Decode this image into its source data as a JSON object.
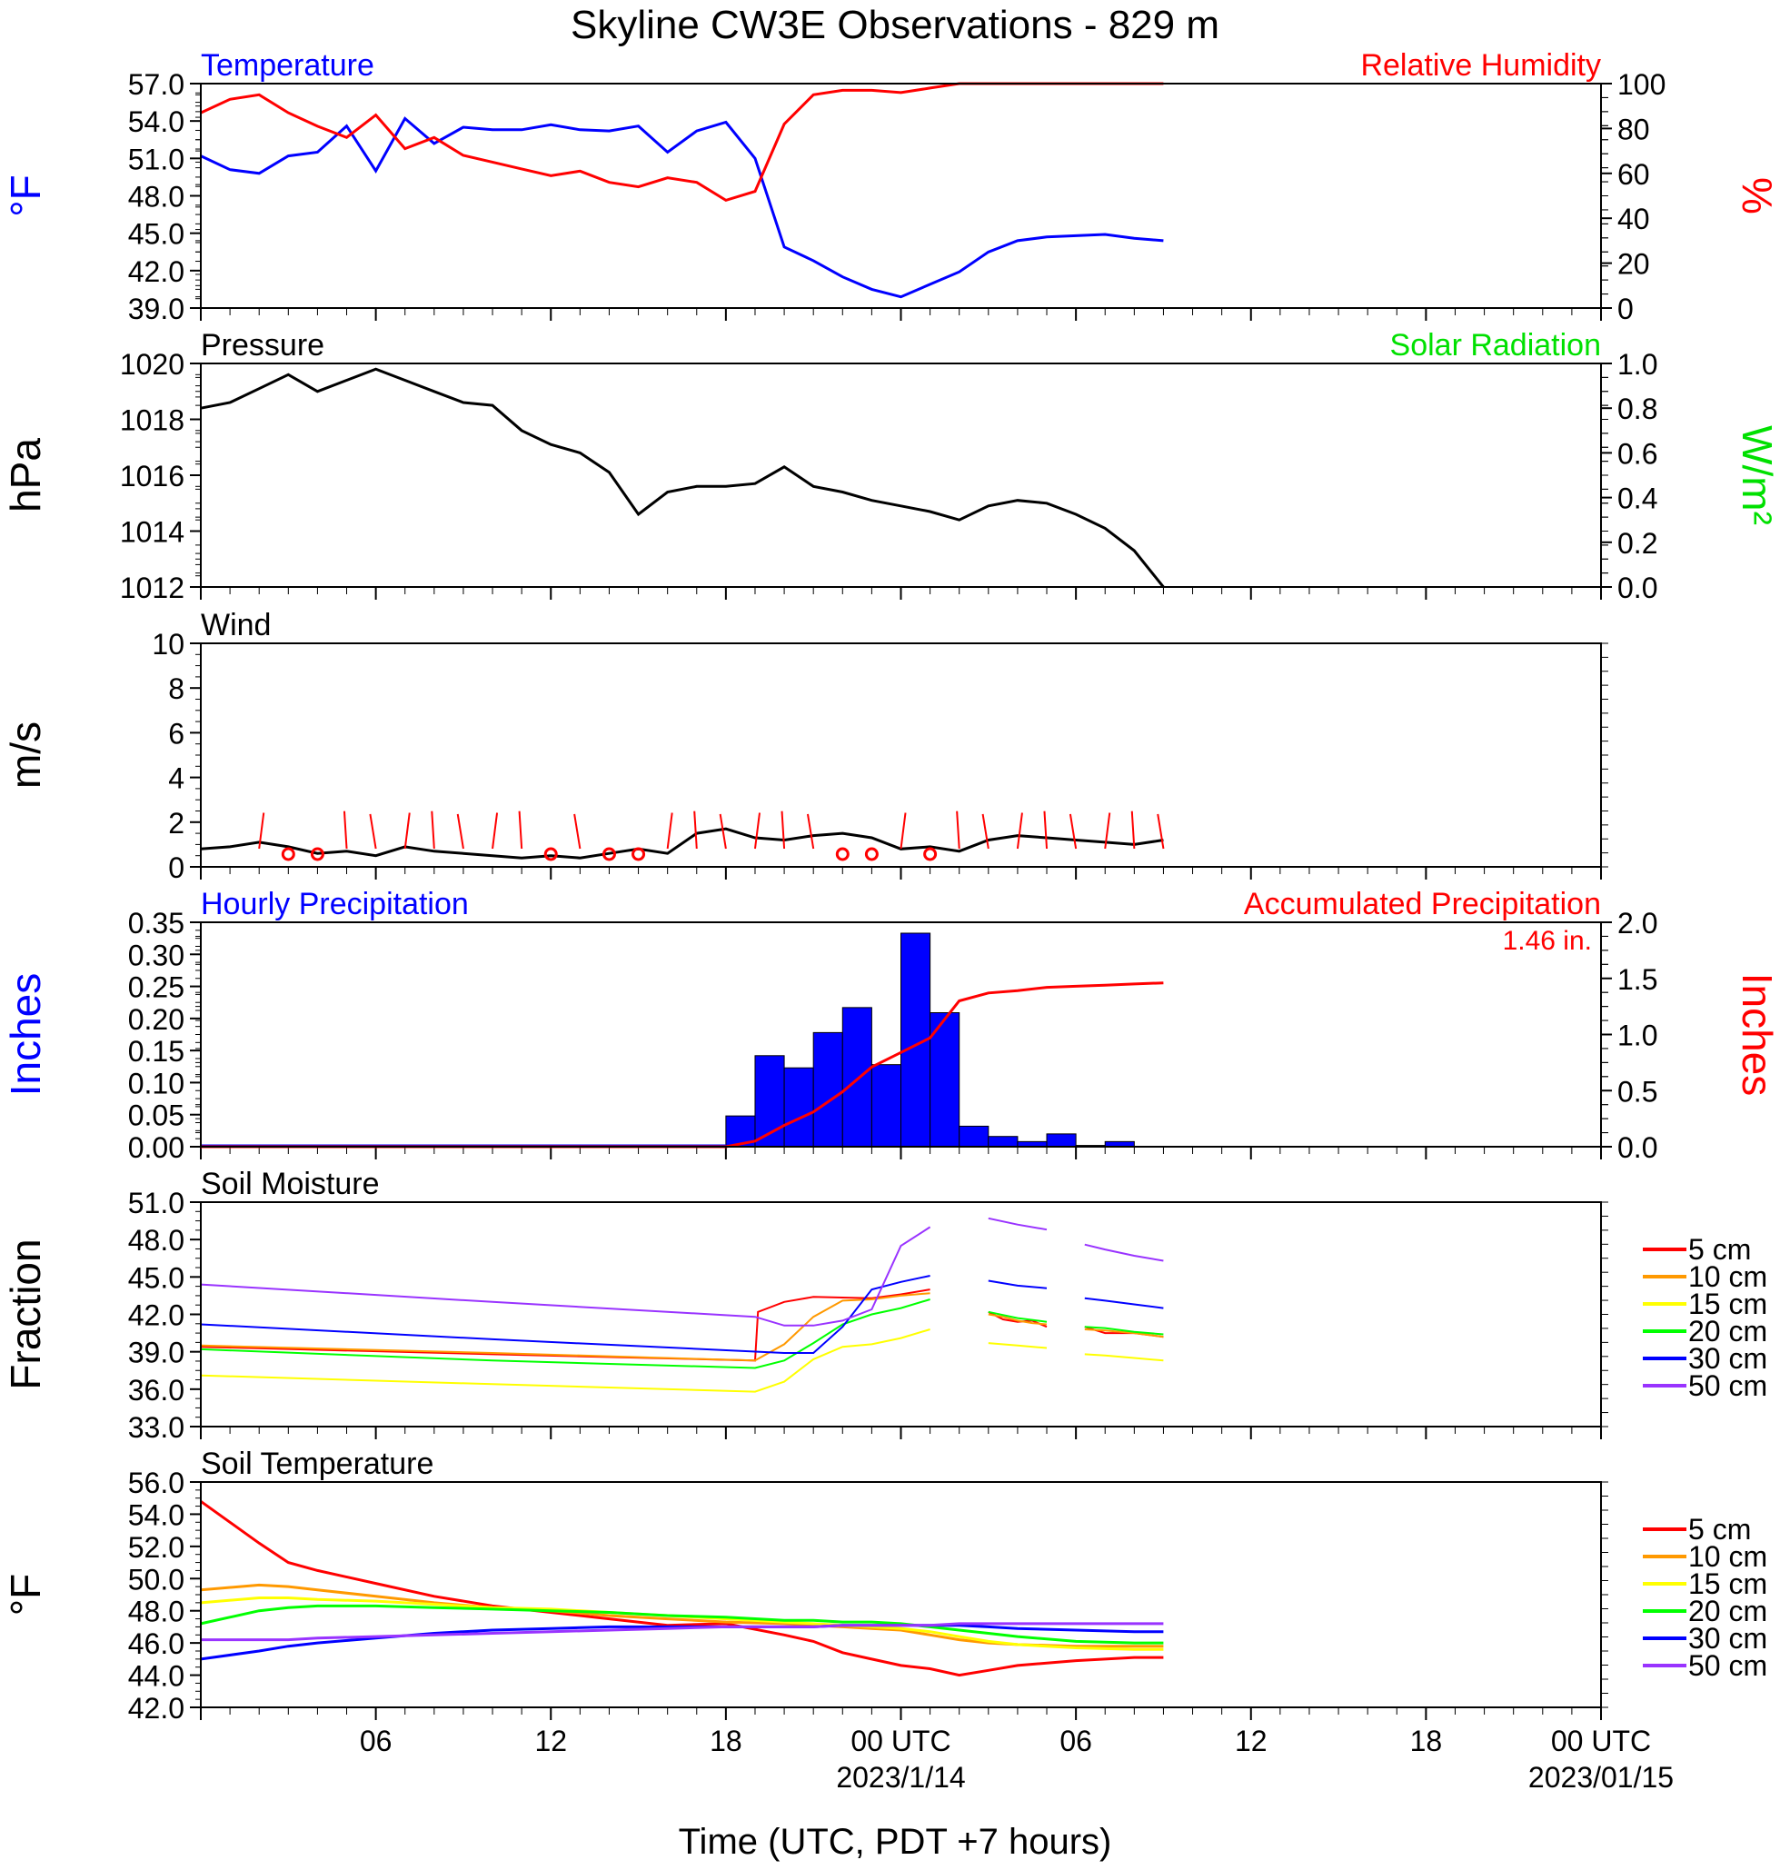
{
  "page": {
    "title": "Skyline CW3E Observations - 829 m",
    "xlabel": "Time (UTC, PDT +7 hours)",
    "x_ticks": [
      "",
      "06",
      "12",
      "18",
      "00 UTC",
      "06",
      "12",
      "18",
      "00 UTC"
    ],
    "date_labels": [
      "2023/1/14",
      "2023/01/15"
    ]
  },
  "chart_data": [
    {
      "panel": "temperature_rh",
      "type": "line",
      "title_left": "Temperature",
      "title_right": "Relative Humidity",
      "ylabel_left": "°F",
      "ylabel_right": "%",
      "ylim_left": [
        39,
        57
      ],
      "yticks_left": [
        "57.0",
        "54.0",
        "51.0",
        "48.0",
        "45.0",
        "42.0",
        "39.0"
      ],
      "ylim_right": [
        0,
        100
      ],
      "yticks_right": [
        "100",
        "80",
        "60",
        "40",
        "20",
        "0"
      ],
      "x_hours": [
        0,
        1,
        2,
        3,
        4,
        5,
        6,
        7,
        8,
        9,
        10,
        11,
        12,
        13,
        14,
        15,
        16,
        17,
        18,
        19,
        20,
        21,
        22,
        23,
        24,
        25,
        26,
        27,
        28,
        29,
        30,
        31,
        32,
        33
      ],
      "series": [
        {
          "name": "Temperature",
          "color": "#0000ff",
          "axis": "left",
          "values": [
            51.2,
            50.1,
            49.8,
            51.2,
            51.5,
            53.6,
            50.0,
            54.2,
            52.2,
            53.5,
            53.3,
            53.3,
            53.7,
            53.3,
            53.2,
            53.6,
            51.5,
            53.2,
            53.9,
            51.0,
            43.9,
            42.8,
            41.5,
            40.5,
            39.9,
            40.9,
            41.9,
            43.5,
            44.4,
            44.7,
            44.8,
            44.9,
            44.6,
            44.4
          ]
        },
        {
          "name": "Relative Humidity",
          "color": "#ff0000",
          "axis": "right",
          "values": [
            87,
            93,
            95,
            87,
            81,
            76,
            86,
            71,
            76,
            68,
            65,
            62,
            59,
            61,
            56,
            54,
            58,
            56,
            48,
            52,
            82,
            95,
            97,
            97,
            96,
            98,
            100,
            100,
            100,
            100,
            100,
            100,
            100,
            100
          ]
        }
      ]
    },
    {
      "panel": "pressure",
      "type": "line",
      "title_left": "Pressure",
      "title_right": "Solar Radiation",
      "ylabel_left": "hPa",
      "ylabel_right": "W/m²",
      "ylim_left": [
        1012,
        1020
      ],
      "yticks_left": [
        "1020",
        "1018",
        "1016",
        "1014",
        "1012"
      ],
      "ylim_right": [
        0,
        1
      ],
      "yticks_right": [
        "1.0",
        "0.8",
        "0.6",
        "0.4",
        "0.2",
        "0.0"
      ],
      "x_hours": [
        0,
        1,
        2,
        3,
        4,
        5,
        6,
        7,
        8,
        9,
        10,
        11,
        12,
        13,
        14,
        15,
        16,
        17,
        18,
        19,
        20,
        21,
        22,
        23,
        24,
        25,
        26,
        27,
        28,
        29,
        30,
        31,
        32,
        33
      ],
      "series": [
        {
          "name": "Pressure",
          "color": "#000000",
          "axis": "left",
          "values": [
            1018.4,
            1018.6,
            1019.1,
            1019.6,
            1019.0,
            1019.4,
            1019.8,
            1019.4,
            1019.0,
            1018.6,
            1018.5,
            1017.6,
            1017.1,
            1016.8,
            1016.1,
            1014.6,
            1015.4,
            1015.6,
            1015.6,
            1015.7,
            1016.3,
            1015.6,
            1015.4,
            1015.1,
            1014.9,
            1014.7,
            1014.4,
            1014.9,
            1015.1,
            1015.0,
            1014.6,
            1014.1,
            1013.3,
            1012.0
          ]
        }
      ]
    },
    {
      "panel": "wind",
      "type": "line",
      "title_left": "Wind",
      "ylabel_left": "m/s",
      "ylim_left": [
        0,
        10
      ],
      "yticks_left": [
        "10",
        "8",
        "6",
        "4",
        "2",
        "0"
      ],
      "x_hours": [
        0,
        1,
        2,
        3,
        4,
        5,
        6,
        7,
        8,
        9,
        10,
        11,
        12,
        13,
        14,
        15,
        16,
        17,
        18,
        19,
        20,
        21,
        22,
        23,
        24,
        25,
        26,
        27,
        28,
        29,
        30,
        31,
        32,
        33
      ],
      "series": [
        {
          "name": "Wind Speed",
          "color": "#000000",
          "axis": "left",
          "values": [
            0.8,
            0.9,
            1.1,
            0.9,
            0.6,
            0.7,
            0.5,
            0.9,
            0.7,
            0.6,
            0.5,
            0.4,
            0.5,
            0.4,
            0.6,
            0.8,
            0.6,
            1.5,
            1.7,
            1.3,
            1.2,
            1.4,
            1.5,
            1.3,
            0.8,
            0.9,
            0.7,
            1.2,
            1.4,
            1.3,
            1.2,
            1.1,
            1.0,
            1.2
          ]
        },
        {
          "name": "Wind Barbs",
          "color": "#ff0000",
          "axis": "left",
          "calm_hours": [
            3,
            4,
            12,
            14,
            15,
            22,
            23,
            25
          ],
          "barb_hours": [
            2,
            5,
            6,
            7,
            8,
            9,
            10,
            11,
            13,
            16,
            17,
            18,
            19,
            20,
            21,
            24,
            26,
            27,
            28,
            29,
            30,
            31,
            32,
            33
          ]
        }
      ]
    },
    {
      "panel": "precipitation",
      "type": "bar",
      "title_left": "Hourly Precipitation",
      "title_right": "Accumulated Precipitation",
      "annotation": "1.46 in.",
      "ylabel_left": "Inches",
      "ylabel_right": "Inches",
      "ylim_left": [
        0,
        0.35
      ],
      "yticks_left": [
        "0.35",
        "0.30",
        "0.25",
        "0.20",
        "0.15",
        "0.10",
        "0.05",
        "0.00"
      ],
      "ylim_right": [
        0,
        2.0
      ],
      "yticks_right": [
        "2.0",
        "1.5",
        "1.0",
        "0.5",
        "0.0"
      ],
      "hourly": {
        "start_hour": 18,
        "color": "#0000ff",
        "values": [
          0.048,
          0.142,
          0.123,
          0.178,
          0.217,
          0.128,
          0.333,
          0.209,
          0.032,
          0.016,
          0.008,
          0.02,
          0.002,
          0.008
        ]
      },
      "accumulated": {
        "name": "Accumulated Precipitation",
        "color": "#ff0000",
        "x_hours": [
          0,
          18,
          19,
          20,
          21,
          22,
          23,
          24,
          25,
          26,
          27,
          28,
          29,
          30,
          31,
          32,
          33
        ],
        "values": [
          0,
          0,
          0.05,
          0.19,
          0.31,
          0.49,
          0.71,
          0.84,
          0.97,
          1.3,
          1.37,
          1.39,
          1.42,
          1.43,
          1.44,
          1.45,
          1.46
        ]
      }
    },
    {
      "panel": "soil_moisture",
      "type": "line",
      "title_left": "Soil Moisture",
      "ylabel_left": "Fraction",
      "ylim_left": [
        33,
        51
      ],
      "yticks_left": [
        "51.0",
        "48.0",
        "45.0",
        "42.0",
        "39.0",
        "36.0",
        "33.0"
      ],
      "legend": [
        "5 cm",
        "10 cm",
        "15 cm",
        "20 cm",
        "30 cm",
        "50 cm"
      ],
      "legend_colors": [
        "#ff0000",
        "#ff9900",
        "#ffff00",
        "#00ff00",
        "#0000ff",
        "#9933ff"
      ],
      "series": [
        {
          "name": "5 cm",
          "color": "#ff0000",
          "segments": [
            {
              "x": [
                0,
                10,
                19,
                19.1,
                20,
                21,
                23,
                24,
                25
              ],
              "values": [
                39.4,
                38.8,
                38.3,
                42.2,
                43.0,
                43.4,
                43.3,
                43.6,
                44.0
              ]
            },
            {
              "x": [
                27,
                27.5,
                28,
                28.5,
                29
              ],
              "values": [
                42.2,
                41.6,
                41.4,
                41.5,
                41.0
              ]
            },
            {
              "x": [
                30.3,
                31,
                32,
                33
              ],
              "values": [
                41.0,
                40.5,
                40.5,
                40.2
              ]
            }
          ]
        },
        {
          "name": "10 cm",
          "color": "#ff9900",
          "segments": [
            {
              "x": [
                0,
                10,
                19,
                20,
                21,
                22,
                23,
                24,
                25
              ],
              "values": [
                39.5,
                38.9,
                38.3,
                39.6,
                41.8,
                43.1,
                43.2,
                43.5,
                43.7
              ]
            },
            {
              "x": [
                27,
                27.5,
                28,
                28.5,
                29
              ],
              "values": [
                42.0,
                41.8,
                41.5,
                41.3,
                41.2
              ]
            },
            {
              "x": [
                30.3,
                31,
                32,
                33
              ],
              "values": [
                40.8,
                40.7,
                40.5,
                40.2
              ]
            }
          ]
        },
        {
          "name": "15 cm",
          "color": "#ffff00",
          "segments": [
            {
              "x": [
                0,
                10,
                19,
                20,
                21,
                22,
                23,
                24,
                25
              ],
              "values": [
                37.1,
                36.4,
                35.8,
                36.6,
                38.4,
                39.4,
                39.6,
                40.1,
                40.8
              ]
            },
            {
              "x": [
                27,
                28,
                29
              ],
              "values": [
                39.7,
                39.5,
                39.3
              ]
            },
            {
              "x": [
                30.3,
                31,
                32,
                33
              ],
              "values": [
                38.8,
                38.7,
                38.5,
                38.3
              ]
            }
          ]
        },
        {
          "name": "20 cm",
          "color": "#00ff00",
          "segments": [
            {
              "x": [
                0,
                10,
                19,
                20,
                21,
                22,
                23,
                24,
                25
              ],
              "values": [
                39.2,
                38.3,
                37.7,
                38.3,
                39.7,
                41.2,
                42.0,
                42.5,
                43.2
              ]
            },
            {
              "x": [
                27,
                28,
                29
              ],
              "values": [
                42.2,
                41.7,
                41.4
              ]
            },
            {
              "x": [
                30.3,
                31,
                32,
                33
              ],
              "values": [
                41.0,
                40.9,
                40.6,
                40.4
              ]
            }
          ]
        },
        {
          "name": "30 cm",
          "color": "#0000ff",
          "segments": [
            {
              "x": [
                0,
                10,
                20,
                21,
                22,
                23,
                24,
                25
              ],
              "values": [
                41.2,
                40.0,
                38.9,
                38.9,
                41.0,
                44.0,
                44.6,
                45.1
              ]
            },
            {
              "x": [
                27,
                28,
                29
              ],
              "values": [
                44.7,
                44.3,
                44.1
              ]
            },
            {
              "x": [
                30.3,
                31,
                32,
                33
              ],
              "values": [
                43.3,
                43.1,
                42.8,
                42.5
              ]
            }
          ]
        },
        {
          "name": "50 cm",
          "color": "#9933ff",
          "segments": [
            {
              "x": [
                0,
                10,
                19,
                20,
                21,
                22,
                23,
                24,
                25
              ],
              "values": [
                44.4,
                43.0,
                41.8,
                41.1,
                41.1,
                41.5,
                42.4,
                47.5,
                49.0
              ]
            },
            {
              "x": [
                27,
                28,
                29
              ],
              "values": [
                49.7,
                49.2,
                48.8
              ]
            },
            {
              "x": [
                30.3,
                31,
                32,
                33
              ],
              "values": [
                47.6,
                47.2,
                46.7,
                46.3
              ]
            }
          ]
        }
      ]
    },
    {
      "panel": "soil_temperature",
      "type": "line",
      "title_left": "Soil Temperature",
      "ylabel_left": "°F",
      "ylim_left": [
        42,
        56
      ],
      "yticks_left": [
        "56.0",
        "54.0",
        "52.0",
        "50.0",
        "48.0",
        "46.0",
        "44.0",
        "42.0"
      ],
      "legend": [
        "5 cm",
        "10 cm",
        "15 cm",
        "20 cm",
        "30 cm",
        "50 cm"
      ],
      "legend_colors": [
        "#ff0000",
        "#ff9900",
        "#ffff00",
        "#00ff00",
        "#0000ff",
        "#9933ff"
      ],
      "x_hours": [
        0,
        2,
        3,
        4,
        6,
        8,
        10,
        12,
        14,
        16,
        18,
        20,
        21,
        22,
        23,
        24,
        25,
        26,
        27,
        28,
        30,
        32,
        33
      ],
      "series": [
        {
          "name": "5 cm",
          "color": "#ff0000",
          "values": [
            54.8,
            52.2,
            51.0,
            50.5,
            49.7,
            48.9,
            48.3,
            47.9,
            47.5,
            47.1,
            47.2,
            46.5,
            46.1,
            45.4,
            45.0,
            44.6,
            44.4,
            44.0,
            44.3,
            44.6,
            44.9,
            45.1,
            45.1
          ]
        },
        {
          "name": "10 cm",
          "color": "#ff9900",
          "values": [
            49.3,
            49.6,
            49.5,
            49.3,
            48.9,
            48.5,
            48.2,
            48.0,
            47.7,
            47.5,
            47.3,
            47.2,
            47.1,
            47.0,
            46.9,
            46.8,
            46.5,
            46.2,
            46.0,
            45.9,
            45.8,
            45.8,
            45.8
          ]
        },
        {
          "name": "15 cm",
          "color": "#ffff00",
          "values": [
            48.5,
            48.8,
            48.8,
            48.7,
            48.6,
            48.4,
            48.2,
            48.1,
            47.9,
            47.7,
            47.5,
            47.3,
            47.2,
            47.1,
            47.0,
            46.9,
            46.7,
            46.4,
            46.1,
            45.9,
            45.7,
            45.6,
            45.6
          ]
        },
        {
          "name": "20 cm",
          "color": "#00ff00",
          "values": [
            47.2,
            48.0,
            48.2,
            48.3,
            48.3,
            48.2,
            48.1,
            48.0,
            47.9,
            47.7,
            47.6,
            47.4,
            47.4,
            47.3,
            47.3,
            47.2,
            47.0,
            46.8,
            46.6,
            46.4,
            46.1,
            46.0,
            46.0
          ]
        },
        {
          "name": "30 cm",
          "color": "#0000ff",
          "values": [
            45.0,
            45.5,
            45.8,
            46.0,
            46.3,
            46.6,
            46.8,
            46.9,
            47.0,
            47.0,
            47.0,
            47.0,
            47.0,
            47.1,
            47.1,
            47.1,
            47.1,
            47.1,
            47.0,
            46.9,
            46.8,
            46.7,
            46.7
          ]
        },
        {
          "name": "50 cm",
          "color": "#9933ff",
          "values": [
            46.2,
            46.2,
            46.2,
            46.3,
            46.4,
            46.5,
            46.6,
            46.7,
            46.8,
            46.9,
            47.0,
            47.0,
            47.0,
            47.1,
            47.1,
            47.1,
            47.1,
            47.2,
            47.2,
            47.2,
            47.2,
            47.2,
            47.2
          ]
        }
      ]
    }
  ]
}
